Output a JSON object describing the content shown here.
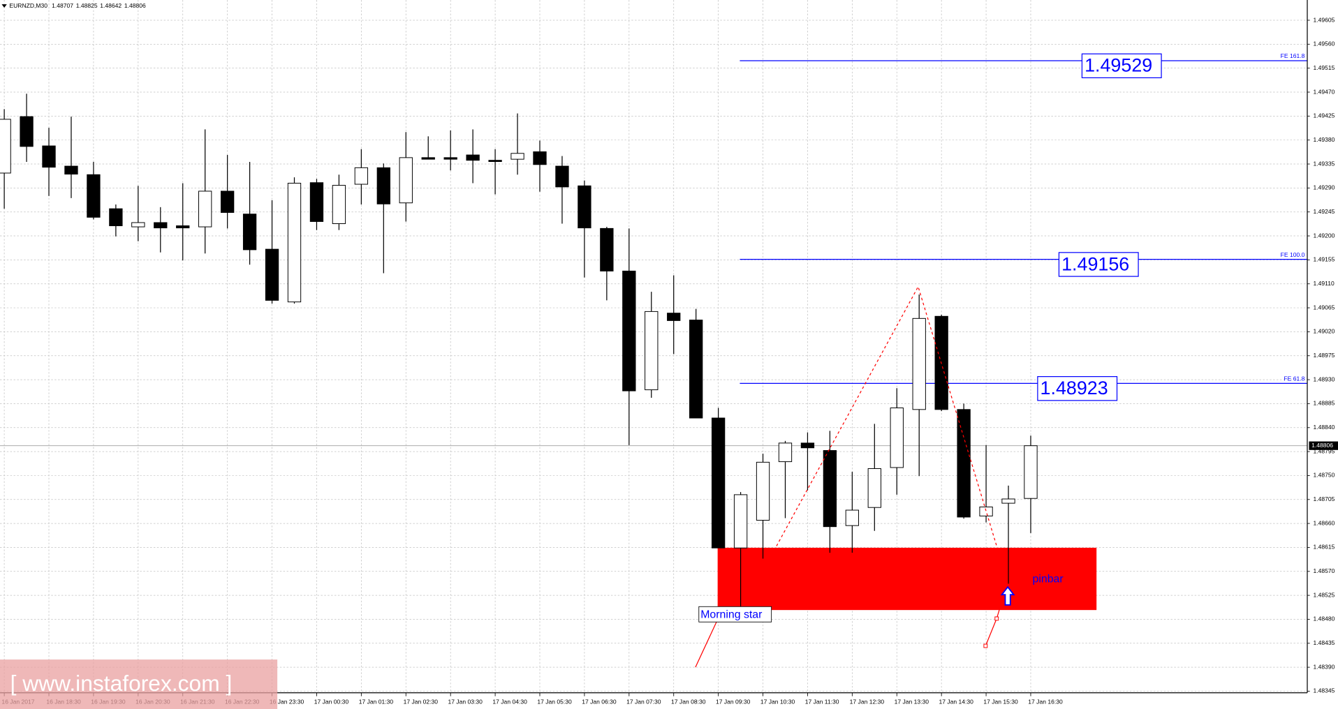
{
  "chart_data": {
    "type": "candlestick",
    "title": "EURNZD,M30",
    "x": [
      "16 Jan 2017",
      null,
      "16 Jan 18:30",
      null,
      "16 Jan 19:30",
      null,
      "16 Jan 20:30",
      null,
      "16 Jan 21:30",
      null,
      "16 Jan 22:30",
      null,
      "16 Jan 23:30",
      null,
      "17 Jan 00:30",
      null,
      "17 Jan 01:30",
      null,
      "17 Jan 02:30",
      null,
      "17 Jan 03:30",
      null,
      "17 Jan 04:30",
      null,
      "17 Jan 05:30",
      null,
      "17 Jan 06:30",
      null,
      "17 Jan 07:30",
      null,
      "17 Jan 08:30",
      null,
      "17 Jan 09:30",
      null,
      "17 Jan 10:30",
      null,
      "17 Jan 11:30",
      null,
      "17 Jan 12:30",
      null,
      "17 Jan 13:30",
      null,
      "17 Jan 14:30",
      null,
      "17 Jan 15:30",
      null,
      "17 Jan 16:30"
    ],
    "open": [
      1.49318,
      1.49424,
      1.49369,
      1.49331,
      1.49315,
      1.49251,
      1.49217,
      1.49225,
      1.49219,
      1.49217,
      1.49284,
      1.49241,
      1.49175,
      1.49076,
      1.493,
      1.49223,
      1.49297,
      1.49328,
      1.49262,
      1.49347,
      1.49347,
      1.49352,
      1.49342,
      1.49344,
      1.49358,
      1.49331,
      1.49294,
      1.49214,
      1.49134,
      1.48911,
      1.49055,
      1.49042,
      1.48858,
      1.48614,
      1.48666,
      1.48776,
      1.48811,
      1.48797,
      1.48656,
      1.4869,
      1.48765,
      1.48874,
      1.49049,
      1.48874,
      1.48674,
      1.48698,
      1.48707
    ],
    "high": [
      1.49438,
      1.49467,
      1.49403,
      1.49424,
      1.49339,
      1.49259,
      1.49294,
      1.49254,
      1.49299,
      1.494,
      1.49352,
      1.49339,
      1.49267,
      1.4931,
      1.49307,
      1.49315,
      1.49363,
      1.49336,
      1.49395,
      1.49387,
      1.49398,
      1.494,
      1.49363,
      1.4943,
      1.49379,
      1.4935,
      1.49304,
      1.49217,
      1.49214,
      1.49095,
      1.49126,
      1.49063,
      1.48877,
      1.48719,
      1.48791,
      1.48815,
      1.48831,
      1.48834,
      1.48757,
      1.48847,
      1.48914,
      1.4909,
      1.49052,
      1.48885,
      1.48807,
      1.48731,
      1.48825
    ],
    "low": [
      1.49251,
      1.49339,
      1.49275,
      1.49271,
      1.49231,
      1.49199,
      1.4919,
      1.49169,
      1.49154,
      1.49167,
      1.49214,
      1.49146,
      1.49073,
      1.49073,
      1.49211,
      1.49211,
      1.49259,
      1.4913,
      1.49227,
      1.49345,
      1.49323,
      1.49299,
      1.49278,
      1.49315,
      1.49283,
      1.49223,
      1.49122,
      1.49079,
      1.48807,
      1.48896,
      1.48978,
      1.48858,
      1.48614,
      1.48489,
      1.48594,
      1.4867,
      1.48722,
      1.48605,
      1.48605,
      1.48646,
      1.48714,
      1.48749,
      1.48871,
      1.48669,
      1.48662,
      1.48547,
      1.48642
    ],
    "close": [
      1.49419,
      1.49368,
      1.49329,
      1.49316,
      1.49235,
      1.49219,
      1.49225,
      1.49215,
      1.49215,
      1.49284,
      1.49244,
      1.49174,
      1.49079,
      1.49299,
      1.49227,
      1.49295,
      1.49328,
      1.4926,
      1.49347,
      1.49344,
      1.49344,
      1.49342,
      1.4934,
      1.49355,
      1.49334,
      1.49292,
      1.49215,
      1.49134,
      1.48909,
      1.49058,
      1.49041,
      1.48858,
      1.48614,
      1.48714,
      1.48775,
      1.48811,
      1.48802,
      1.48654,
      1.48685,
      1.48763,
      1.48877,
      1.49045,
      1.48874,
      1.48672,
      1.48691,
      1.48706,
      1.48806
    ],
    "up_color": "#ffffff",
    "down_color": "#000000",
    "ylim": [
      1.48342,
      1.49643
    ],
    "yticks": [
      1.48345,
      {
        "value": 1.4839,
        "label": "1.48390"
      },
      1.48435,
      {
        "value": 1.4848,
        "label": "1.48480"
      },
      1.48525,
      {
        "value": 1.4857,
        "label": "1.48570"
      },
      1.48615,
      {
        "value": 1.4866,
        "label": "1.48660"
      },
      1.48705,
      {
        "value": 1.4875,
        "label": "1.48750"
      },
      1.48795,
      {
        "value": 1.4884,
        "label": "1.48840"
      },
      1.48885,
      {
        "value": 1.4893,
        "label": "1.48930"
      },
      1.48975,
      {
        "value": 1.4902,
        "label": "1.49020"
      },
      1.49065,
      {
        "value": 1.4911,
        "label": "1.49110"
      },
      1.49155,
      {
        "value": 1.492,
        "label": "1.49200"
      },
      1.49245,
      {
        "value": 1.4929,
        "label": "1.49290"
      },
      1.49335,
      {
        "value": 1.4938,
        "label": "1.49380"
      },
      1.49425,
      {
        "value": 1.4947,
        "label": "1.49470"
      },
      1.49515,
      {
        "value": 1.4956,
        "label": "1.49560"
      },
      1.49605
    ],
    "grid": true,
    "levels": [
      {
        "name": "FE 161.8",
        "value": 1.49529
      },
      {
        "name": "FE 100.0",
        "value": 1.49156
      },
      {
        "name": "FE 61.8",
        "value": 1.48923
      }
    ],
    "annotations": [
      "Morning star",
      "pinbar"
    ],
    "watermark": "[ www.instaforex.com ]"
  }
}
